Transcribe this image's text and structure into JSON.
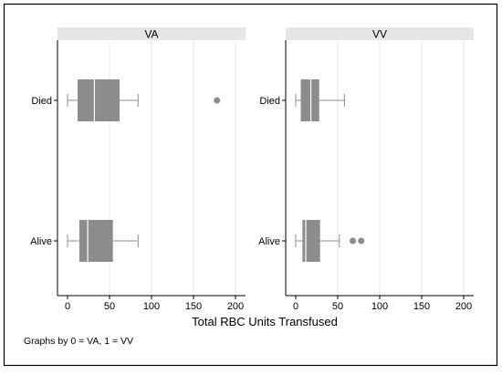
{
  "chart_data": {
    "type": "box",
    "xlabel": "Total RBC Units Transfused",
    "note": "Graphs by 0 = VA, 1 = VV",
    "categories": [
      "Died",
      "Alive"
    ],
    "xlim": [
      0,
      200
    ],
    "xticks": [
      0,
      50,
      100,
      150,
      200
    ],
    "grid": true,
    "colors": {
      "box": "#8c8c8c",
      "whisker": "#8c8c8c",
      "outlier": "#8c8c8c",
      "header_bg": "#e6e6e6",
      "grid": "#e5e5e5"
    },
    "panels": [
      {
        "title": "VA",
        "boxes": [
          {
            "category": "Died",
            "min": 0,
            "q1": 12,
            "median": 32,
            "q3": 62,
            "max": 84,
            "outliers": [
              178
            ]
          },
          {
            "category": "Alive",
            "min": 0,
            "q1": 14,
            "median": 24,
            "q3": 54,
            "max": 84,
            "outliers": []
          }
        ]
      },
      {
        "title": "VV",
        "boxes": [
          {
            "category": "Died",
            "min": 0,
            "q1": 6,
            "median": 18,
            "q3": 28,
            "max": 58,
            "outliers": []
          },
          {
            "category": "Alive",
            "min": 0,
            "q1": 8,
            "median": 12,
            "q3": 29,
            "max": 52,
            "outliers": [
              68,
              78
            ]
          }
        ]
      }
    ]
  }
}
